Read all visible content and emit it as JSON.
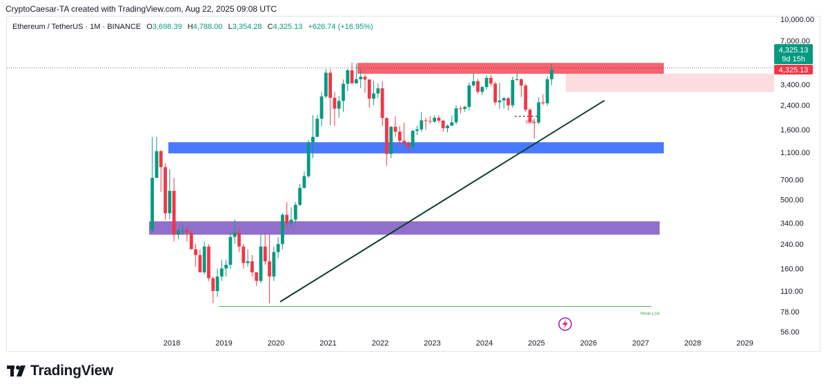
{
  "caption": "CryptoCaesar-TA created with TradingView.com, Aug 22, 2025 09:08 UTC",
  "legend": {
    "symbol": "Ethereum / TetherUS · 1M · BINANCE",
    "o_label": "O",
    "o_value": "3,698.39",
    "h_label": "H",
    "h_value": "4,788.00",
    "l_label": "L",
    "l_value": "3,354.28",
    "c_label": "C",
    "c_value": "4,325.13",
    "change": "+626.74 (+16.95%)"
  },
  "price_tag": {
    "price": "4,325.13",
    "countdown": "9d 15h",
    "alt_price": "4,325.13"
  },
  "annotations": {
    "bos": "BOS",
    "weak_low": "Weak Low"
  },
  "brand": {
    "name": "TradingView"
  },
  "colors": {
    "up": "#089981",
    "down": "#f23645",
    "supply_zone": "#f7525f",
    "supply_light": "#fbd3d7",
    "blue_zone": "#2962ff",
    "purple_zone": "#7e57c2",
    "trendline": "#0b3d24",
    "weak_low_line": "#4caf50"
  },
  "chart_data": {
    "type": "candlestick",
    "symbol": "Ethereum / TetherUS",
    "interval": "1M",
    "exchange": "BINANCE",
    "y_scale": "log",
    "y_ticks": [
      10000,
      7000,
      4325.13,
      3400,
      2400,
      1600,
      1100,
      700,
      500,
      340,
      240,
      160,
      110,
      78,
      56
    ],
    "y_tick_labels": [
      "10,000.00",
      "7,000.00",
      "4,325.13",
      "3,400.00",
      "2,400.00",
      "1,600.00",
      "1,100.00",
      "700.00",
      "500.00",
      "340.00",
      "240.00",
      "160.00",
      "110.00",
      "78.00",
      "56.00"
    ],
    "x_ticks": [
      "2018",
      "2019",
      "2020",
      "2021",
      "2022",
      "2023",
      "2024",
      "2025",
      "2026",
      "2027",
      "2028",
      "2029"
    ],
    "last_close": 4325.13,
    "candles_ochl": [
      [
        300,
        720,
        1420,
        290
      ],
      [
        720,
        1120,
        1420,
        720
      ],
      [
        1120,
        860,
        1140,
        570
      ],
      [
        860,
        400,
        920,
        360
      ],
      [
        400,
        580,
        830,
        360
      ],
      [
        580,
        280,
        720,
        250
      ],
      [
        280,
        300,
        310,
        260
      ],
      [
        300,
        300,
        330,
        280
      ],
      [
        300,
        290,
        320,
        250
      ],
      [
        290,
        220,
        300,
        240
      ],
      [
        220,
        200,
        240,
        165
      ],
      [
        200,
        150,
        220,
        170
      ],
      [
        150,
        230,
        250,
        145
      ],
      [
        230,
        136,
        240,
        130
      ],
      [
        136,
        110,
        140,
        90
      ],
      [
        110,
        140,
        160,
        100
      ],
      [
        140,
        160,
        185,
        130
      ],
      [
        160,
        170,
        185,
        140
      ],
      [
        170,
        270,
        290,
        160
      ],
      [
        270,
        290,
        360,
        240
      ],
      [
        290,
        230,
        315,
        210
      ],
      [
        230,
        175,
        240,
        160
      ],
      [
        175,
        180,
        220,
        165
      ],
      [
        180,
        150,
        200,
        140
      ],
      [
        150,
        130,
        150,
        120
      ],
      [
        130,
        230,
        280,
        125
      ],
      [
        230,
        180,
        290,
        170
      ],
      [
        180,
        140,
        280,
        90
      ],
      [
        140,
        210,
        230,
        130
      ],
      [
        210,
        240,
        270,
        190
      ],
      [
        240,
        390,
        400,
        220
      ],
      [
        390,
        340,
        480,
        320
      ],
      [
        340,
        360,
        440,
        320
      ],
      [
        360,
        460,
        480,
        340
      ],
      [
        460,
        610,
        650,
        450
      ],
      [
        610,
        740,
        800,
        600
      ],
      [
        740,
        1300,
        1350,
        720
      ],
      [
        1300,
        1420,
        2040,
        1000
      ],
      [
        1420,
        1920,
        2040,
        1420
      ],
      [
        1920,
        2780,
        3000,
        1700
      ],
      [
        2780,
        4120,
        4380,
        2700
      ],
      [
        4120,
        2720,
        4380,
        1720
      ],
      [
        2720,
        2270,
        3000,
        1700
      ],
      [
        2270,
        2580,
        2800,
        1950
      ],
      [
        2580,
        3430,
        3680,
        2150
      ],
      [
        3430,
        4290,
        4400,
        3040
      ],
      [
        4290,
        3450,
        4870,
        3520
      ],
      [
        3450,
        3700,
        4780,
        3600
      ],
      [
        3700,
        3850,
        4400,
        3200
      ],
      [
        3850,
        3680,
        4000,
        2950
      ],
      [
        3680,
        2680,
        3700,
        2300
      ],
      [
        2680,
        2920,
        3600,
        2400
      ],
      [
        2920,
        3180,
        3450,
        2700
      ],
      [
        3180,
        1940,
        3580,
        1700
      ],
      [
        1940,
        1070,
        1970,
        880
      ],
      [
        1070,
        1680,
        1700,
        1000
      ],
      [
        1680,
        1550,
        2000,
        1420
      ],
      [
        1550,
        1330,
        1700,
        1220
      ],
      [
        1330,
        1280,
        1800,
        1190
      ],
      [
        1280,
        1200,
        1320,
        1100
      ],
      [
        1200,
        1570,
        1600,
        1150
      ],
      [
        1570,
        1610,
        1710,
        1460
      ],
      [
        1610,
        1870,
        2150,
        1550
      ],
      [
        1870,
        1850,
        1950,
        1600
      ],
      [
        1850,
        1830,
        2000,
        1770
      ],
      [
        1830,
        1950,
        2030,
        1800
      ],
      [
        1950,
        1860,
        2030,
        1800
      ],
      [
        1860,
        1640,
        1880,
        1550
      ],
      [
        1640,
        1710,
        1750,
        1530
      ],
      [
        1710,
        1810,
        2030,
        1700
      ],
      [
        1810,
        2280,
        2400,
        1750
      ],
      [
        2280,
        2260,
        2380,
        2100
      ],
      [
        2260,
        2340,
        2380,
        2150
      ],
      [
        2340,
        3340,
        3520,
        2200
      ],
      [
        3340,
        3580,
        4100,
        3250
      ],
      [
        3580,
        3000,
        3730,
        2900
      ],
      [
        3000,
        3250,
        3300,
        2840
      ],
      [
        3250,
        3780,
        3950,
        3100
      ],
      [
        3780,
        3440,
        3970,
        3300
      ],
      [
        3440,
        2520,
        3560,
        2400
      ],
      [
        2520,
        2600,
        3480,
        2250
      ],
      [
        2600,
        2700,
        2750,
        2270
      ],
      [
        2700,
        2400,
        2750,
        2200
      ],
      [
        2400,
        3650,
        3860,
        2300
      ],
      [
        3650,
        3700,
        4110,
        3600
      ],
      [
        3700,
        3330,
        3750,
        2750
      ],
      [
        3330,
        2230,
        3440,
        2150
      ],
      [
        2230,
        1820,
        2290,
        1770
      ],
      [
        1820,
        1800,
        1930,
        1380
      ],
      [
        1800,
        2520,
        2740,
        1750
      ],
      [
        2520,
        2480,
        2880,
        2400
      ],
      [
        2480,
        3700,
        3860,
        2380
      ],
      [
        3698.39,
        4325.13,
        4788,
        3354.28
      ]
    ],
    "zones": [
      {
        "name": "supply",
        "from": 4050,
        "to": 4850
      },
      {
        "name": "blue",
        "from": 1080,
        "to": 1300
      },
      {
        "name": "purple",
        "from": 280,
        "to": 350
      }
    ],
    "weak_low": 85
  }
}
